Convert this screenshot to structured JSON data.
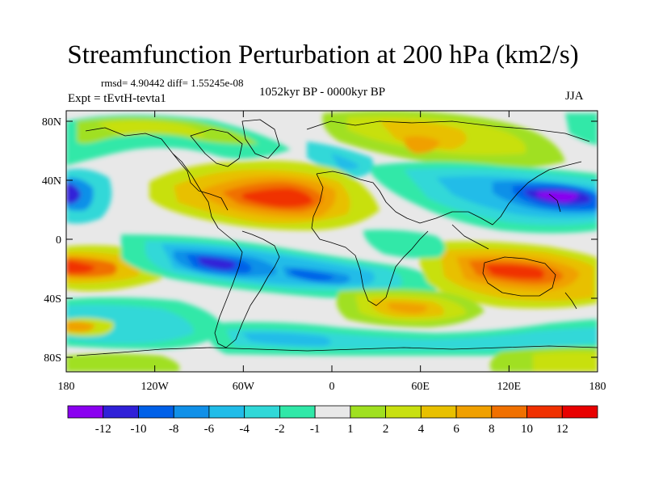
{
  "title": "Streamfunction Perturbation at 200 hPa (km2/s)",
  "stats_line": "rmsd= 4.90442 diff= 1.55245e-08",
  "experiment": "Expt = tEvtH-tevta1",
  "period": "1052kyr BP - 0000kyr BP",
  "season": "JJA",
  "y_ticks": [
    "80N",
    "40N",
    "0",
    "40S",
    "80S"
  ],
  "x_ticks": [
    "180",
    "120W",
    "60W",
    "0",
    "60E",
    "120E",
    "180"
  ],
  "colorbar": {
    "labels": [
      "-12",
      "-10",
      "-8",
      "-6",
      "-4",
      "-2",
      "-1",
      "1",
      "2",
      "4",
      "6",
      "8",
      "10",
      "12"
    ],
    "colors": [
      "#8a00f0",
      "#3020d8",
      "#0060e8",
      "#1090e8",
      "#20bce8",
      "#30d8d8",
      "#30e8a8",
      "#e8e8e8",
      "#a0e020",
      "#c8e010",
      "#e8c000",
      "#f0a000",
      "#f07000",
      "#f03000",
      "#e80000"
    ]
  }
}
